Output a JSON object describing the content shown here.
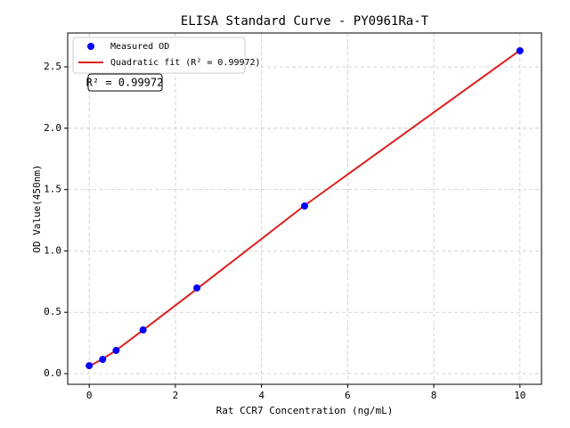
{
  "chart_data": {
    "type": "scatter",
    "title": "ELISA Standard Curve - PY0961Ra-T",
    "x_label": "Rat CCR7 Concentration (ng/mL)",
    "y_label": "OD Value(450nm)",
    "annotation": "R² = 0.99972",
    "xlim": [
      -0.5,
      10.5
    ],
    "ylim": [
      -0.087,
      2.776
    ],
    "xticks": [
      0,
      2,
      4,
      6,
      8,
      10
    ],
    "yticks": [
      {
        "value": 0,
        "label": "0.0"
      },
      0.5,
      {
        "value": 1,
        "label": "1.0"
      },
      1.5,
      {
        "value": 2,
        "label": "2.0"
      },
      2.5
    ],
    "grid": true,
    "legend": "upper left",
    "series": [
      {
        "name": "Measured OD",
        "type": "scatter",
        "color": "#0000ff",
        "x": [
          0,
          0.3125,
          0.625,
          1.25,
          2.5,
          5,
          10
        ],
        "values": [
          0.065,
          0.116,
          0.189,
          0.356,
          0.698,
          1.366,
          2.631
        ]
      },
      {
        "name": "Quadratic fit (R² = 0.99972)",
        "type": "line",
        "color": "#dd1f1f",
        "x": [
          0,
          0.3125,
          0.625,
          1.25,
          2.5,
          5,
          10
        ],
        "values": [
          0.06,
          0.12,
          0.19,
          0.355,
          0.69,
          1.37,
          2.635
        ]
      }
    ]
  }
}
